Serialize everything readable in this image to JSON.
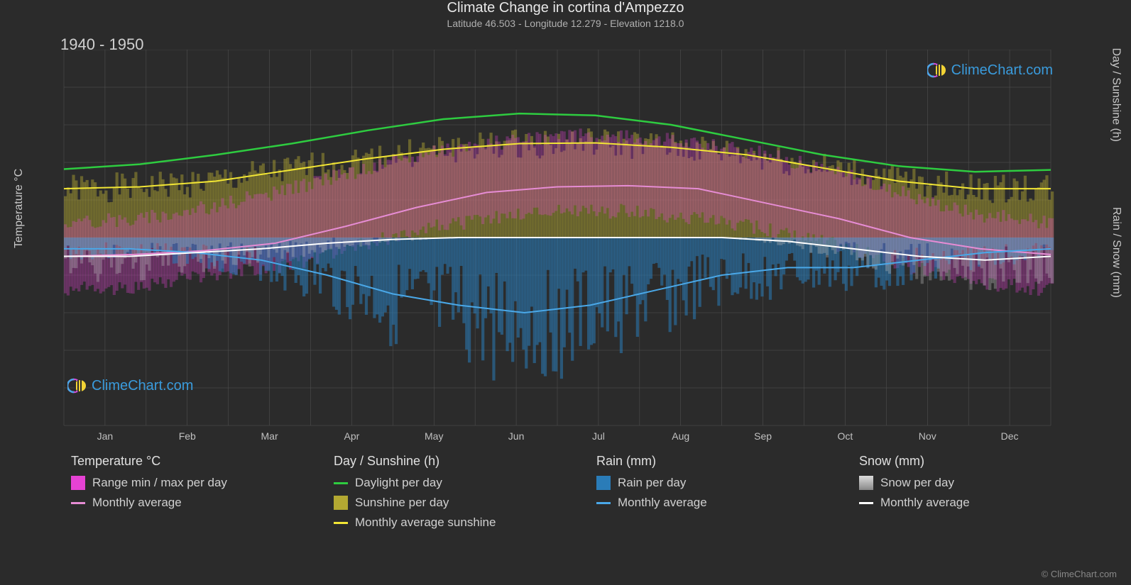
{
  "title": "Climate Change in cortina d'Ampezzo",
  "subtitle": "Latitude 46.503 - Longitude 12.279 - Elevation 1218.0",
  "period": "1940 - 1950",
  "watermark_text": "ClimeChart.com",
  "copyright": "© ClimeChart.com",
  "axis": {
    "left_label": "Temperature °C",
    "right_top_label": "Day / Sunshine (h)",
    "right_bottom_label": "Rain / Snow (mm)",
    "y_left": {
      "min": -50,
      "max": 50,
      "step": 10
    },
    "y_right_top": {
      "min": 0,
      "max": 24,
      "step": 6
    },
    "y_right_bottom": {
      "min": 0,
      "max": 40,
      "step": 10
    },
    "months": [
      "Jan",
      "Feb",
      "Mar",
      "Apr",
      "May",
      "Jun",
      "Jul",
      "Aug",
      "Sep",
      "Oct",
      "Nov",
      "Dec"
    ]
  },
  "colors": {
    "background": "#2b2b2b",
    "grid": "#555555",
    "daylight_line": "#2ecc40",
    "sunshine_line": "#f2e635",
    "sunshine_fill": "#b3a832",
    "temp_range_fill": "#e642d4",
    "temp_avg_line": "#e68cd4",
    "rain_fill": "#2a7cb8",
    "rain_line": "#4aa8e8",
    "snow_fill": "#b8b8b8",
    "snow_line": "#ffffff",
    "text": "#d0d0d0"
  },
  "series": {
    "daylight": [
      18.2,
      19.5,
      22,
      25,
      28.5,
      31.5,
      33,
      32.5,
      30,
      26,
      22,
      19,
      17.5,
      18
    ],
    "sunshine_avg": [
      13,
      13.5,
      15,
      18,
      21,
      23.5,
      25,
      25.2,
      24,
      22,
      18.5,
      15,
      13,
      13
    ],
    "temp_avg": [
      -5,
      -4.5,
      -3.5,
      -1.5,
      3,
      8,
      12,
      13.5,
      13.8,
      13,
      9,
      5,
      0,
      -3,
      -4.5
    ],
    "temp_min": [
      -14,
      -13,
      -10,
      -8,
      -3,
      2,
      5,
      7,
      7,
      5,
      2,
      -2,
      -8,
      -12,
      -14
    ],
    "temp_max": [
      4,
      5,
      8,
      12,
      17,
      22,
      25,
      27,
      27,
      25,
      22,
      17,
      11,
      6,
      4
    ],
    "rain_avg": [
      -3,
      -3,
      -4,
      -6,
      -10,
      -15,
      -18,
      -20,
      -18,
      -14,
      -10,
      -8,
      -8,
      -6,
      -4,
      -3
    ],
    "snow_avg": [
      -5,
      -5,
      -4,
      -3,
      -1.5,
      -0.5,
      0,
      0,
      0,
      0,
      0,
      -1,
      -3,
      -5,
      -6,
      -5
    ]
  },
  "legend": {
    "temp": {
      "title": "Temperature °C",
      "range": "Range min / max per day",
      "avg": "Monthly average"
    },
    "day": {
      "title": "Day / Sunshine (h)",
      "daylight": "Daylight per day",
      "sunshine": "Sunshine per day",
      "sunshine_avg": "Monthly average sunshine"
    },
    "rain": {
      "title": "Rain (mm)",
      "perday": "Rain per day",
      "avg": "Monthly average"
    },
    "snow": {
      "title": "Snow (mm)",
      "perday": "Snow per day",
      "avg": "Monthly average"
    }
  }
}
